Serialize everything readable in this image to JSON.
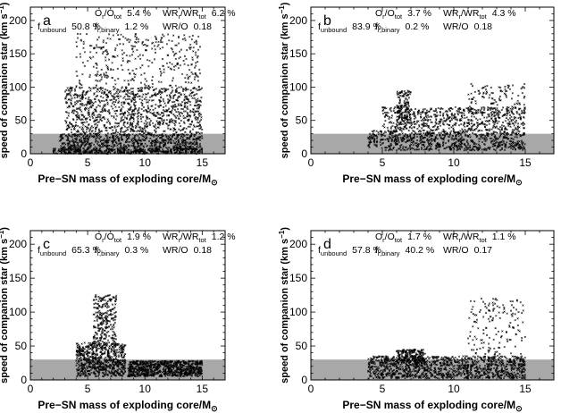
{
  "figure": {
    "xlabel": "Pre−SN mass of exploding core/M",
    "xlabel_sub": "⊙",
    "ylabel": "speed of companion star (km s",
    "ylabel_sup": "−1",
    "ylabel_close": ")"
  },
  "panels": [
    {
      "label": "a",
      "stats": [
        {
          "main": "f",
          "sub": "unbound",
          "value": "50.8 %"
        },
        {
          "main": "O",
          "sub": "r",
          "mid": "/O",
          "sub2": "tot",
          "value": "5.4 %"
        },
        {
          "main": "f",
          "sub": "r,binary",
          "value": "1.2 %"
        },
        {
          "main": "WR",
          "sub": "r",
          "mid": "/WR",
          "sub2": "tot",
          "value": "6.2 %"
        },
        {
          "main": "WR/O",
          "value": "0.18"
        }
      ]
    },
    {
      "label": "b",
      "stats": [
        {
          "main": "f",
          "sub": "unbound",
          "value": "83.9 %"
        },
        {
          "main": "O",
          "sub": "r",
          "mid": "/O",
          "sub2": "tot",
          "value": "3.7 %"
        },
        {
          "main": "f",
          "sub": "r,binary",
          "value": "0.2 %"
        },
        {
          "main": "WR",
          "sub": "r",
          "mid": "/WR",
          "sub2": "tot",
          "value": "4.3 %"
        },
        {
          "main": "WR/O",
          "value": "0.18"
        }
      ]
    },
    {
      "label": "c",
      "stats": [
        {
          "main": "f",
          "sub": "unbound",
          "value": "65.3 %"
        },
        {
          "main": "O",
          "sub": "r",
          "mid": "/O",
          "sub2": "tot",
          "value": "1.9 %"
        },
        {
          "main": "f",
          "sub": "r,binary",
          "value": "0.3 %"
        },
        {
          "main": "WR",
          "sub": "r",
          "mid": "/WR",
          "sub2": "tot",
          "value": "1.2 %"
        },
        {
          "main": "WR/O",
          "value": "0.18"
        }
      ]
    },
    {
      "label": "d",
      "stats": [
        {
          "main": "f",
          "sub": "unbound",
          "value": "57.8 %"
        },
        {
          "main": "O",
          "sub": "r",
          "mid": "/O",
          "sub2": "tot",
          "value": "1.7 %"
        },
        {
          "main": "f",
          "sub": "r,binary",
          "value": "40.2 %"
        },
        {
          "main": "WR",
          "sub": "r",
          "mid": "/WR",
          "sub2": "tot",
          "value": "1.1 %"
        },
        {
          "main": "WR/O",
          "value": "0.17"
        }
      ]
    }
  ],
  "chart_data": [
    {
      "type": "scatter",
      "panel": "a",
      "xlim": [
        0,
        17
      ],
      "ylim": [
        0,
        220
      ],
      "xticks": [
        0,
        5,
        10,
        15
      ],
      "yticks": [
        0,
        50,
        100,
        150,
        200
      ],
      "shaded_band_y": [
        0,
        30
      ],
      "point_clouds": [
        {
          "x_range": [
            2.5,
            15
          ],
          "y_range": [
            0,
            30
          ],
          "count": 900
        },
        {
          "x_range": [
            3,
            15
          ],
          "y_range": [
            30,
            100
          ],
          "count": 1100
        },
        {
          "x_range": [
            4,
            15
          ],
          "y_range": [
            100,
            180
          ],
          "count": 350
        },
        {
          "x_range": [
            2,
            15
          ],
          "y_range": [
            0,
            8
          ],
          "count": 250
        }
      ]
    },
    {
      "type": "scatter",
      "panel": "b",
      "xlim": [
        0,
        17
      ],
      "ylim": [
        0,
        220
      ],
      "xticks": [
        0,
        5,
        10,
        15
      ],
      "yticks": [
        0,
        50,
        100,
        150,
        200
      ],
      "shaded_band_y": [
        0,
        30
      ],
      "point_clouds": [
        {
          "x_range": [
            4,
            15
          ],
          "y_range": [
            5,
            35
          ],
          "count": 800
        },
        {
          "x_range": [
            5,
            15
          ],
          "y_range": [
            35,
            70
          ],
          "count": 600
        },
        {
          "x_range": [
            6,
            7
          ],
          "y_range": [
            40,
            95
          ],
          "count": 150
        },
        {
          "x_range": [
            11,
            15
          ],
          "y_range": [
            60,
            105
          ],
          "count": 120
        }
      ]
    },
    {
      "type": "scatter",
      "panel": "c",
      "xlim": [
        0,
        17
      ],
      "ylim": [
        0,
        220
      ],
      "xticks": [
        0,
        5,
        10,
        15
      ],
      "yticks": [
        0,
        50,
        100,
        150,
        200
      ],
      "shaded_band_y": [
        0,
        30
      ],
      "point_clouds": [
        {
          "x_range": [
            4,
            8.3
          ],
          "y_range": [
            5,
            55
          ],
          "count": 700
        },
        {
          "x_range": [
            5.5,
            7.5
          ],
          "y_range": [
            55,
            125
          ],
          "count": 250
        },
        {
          "x_range": [
            8.5,
            15
          ],
          "y_range": [
            5,
            28
          ],
          "count": 800
        }
      ]
    },
    {
      "type": "scatter",
      "panel": "d",
      "xlim": [
        0,
        17
      ],
      "ylim": [
        0,
        220
      ],
      "xticks": [
        0,
        5,
        10,
        15
      ],
      "yticks": [
        0,
        50,
        100,
        150,
        200
      ],
      "shaded_band_y": [
        0,
        30
      ],
      "point_clouds": [
        {
          "x_range": [
            4,
            15
          ],
          "y_range": [
            2,
            35
          ],
          "count": 1200
        },
        {
          "x_range": [
            6,
            8
          ],
          "y_range": [
            25,
            45
          ],
          "count": 200
        },
        {
          "x_range": [
            11,
            15
          ],
          "y_range": [
            35,
            120
          ],
          "count": 150
        }
      ]
    }
  ]
}
